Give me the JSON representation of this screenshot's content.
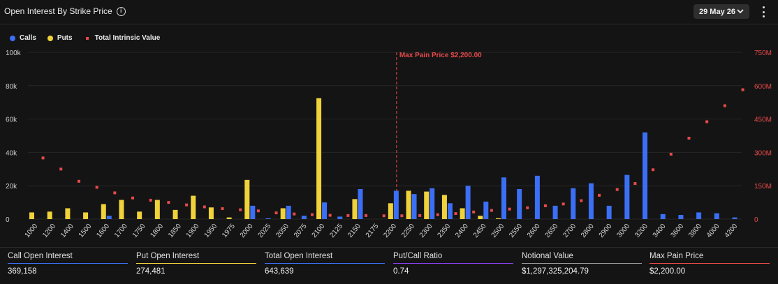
{
  "header": {
    "title": "Open Interest By Strike Price",
    "date": "29 May 26"
  },
  "legend": {
    "calls": "Calls",
    "puts": "Puts",
    "tiv": "Total Intrinsic Value"
  },
  "colors": {
    "calls": "#3b6ff5",
    "puts": "#f0d23a",
    "tiv": "#e84a4a",
    "max_pain": "#e84a4a",
    "axis_right": "#e84a4a"
  },
  "chart_data": {
    "type": "bar",
    "categories": [
      "1000",
      "1200",
      "1400",
      "1500",
      "1600",
      "1700",
      "1750",
      "1800",
      "1850",
      "1900",
      "1950",
      "1975",
      "2000",
      "2025",
      "2050",
      "2075",
      "2100",
      "2125",
      "2150",
      "2175",
      "2200",
      "2250",
      "2300",
      "2350",
      "2400",
      "2450",
      "2500",
      "2550",
      "2600",
      "2650",
      "2700",
      "2800",
      "2900",
      "3000",
      "3200",
      "3400",
      "3600",
      "3800",
      "4000",
      "4200"
    ],
    "series": [
      {
        "name": "Calls",
        "type": "bar",
        "axis": "left",
        "values": [
          0,
          0,
          0,
          0,
          2000,
          0,
          0,
          0,
          0,
          0,
          0,
          0,
          8000,
          500,
          8000,
          2000,
          10000,
          1500,
          18000,
          0,
          17000,
          15000,
          18500,
          9500,
          20000,
          10500,
          25000,
          18000,
          26000,
          8000,
          18500,
          21500,
          8000,
          26500,
          52000,
          3000,
          2500,
          4000,
          3500,
          1000
        ]
      },
      {
        "name": "Puts",
        "type": "bar",
        "axis": "left",
        "values": [
          4000,
          4500,
          6500,
          4000,
          9000,
          11500,
          4500,
          11500,
          5500,
          14000,
          7000,
          1000,
          23500,
          0,
          6500,
          0,
          72500,
          0,
          12000,
          0,
          9500,
          17000,
          16500,
          14500,
          6500,
          2000,
          500,
          0,
          0,
          0,
          0,
          0,
          0,
          0,
          0,
          0,
          0,
          0,
          0,
          0
        ]
      },
      {
        "name": "Total Intrinsic Value",
        "type": "scatter",
        "axis": "right",
        "values": [
          275,
          225,
          170,
          143,
          118,
          95,
          85,
          75,
          64,
          55,
          47,
          42,
          37,
          28,
          23,
          20,
          17,
          16,
          16,
          15,
          15,
          16,
          20,
          25,
          32,
          39,
          45,
          51,
          60,
          68,
          83,
          107,
          133,
          160,
          222,
          292,
          364,
          438,
          510,
          582
        ]
      }
    ],
    "ylim_left": [
      0,
      100000
    ],
    "yticks_left": [
      "0",
      "20k",
      "40k",
      "60k",
      "80k",
      "100k"
    ],
    "ylim_right": [
      0,
      750
    ],
    "yticks_right": [
      "0",
      "150M",
      "300M",
      "450M",
      "600M",
      "750M"
    ],
    "max_pain_strike": "2200",
    "max_pain_label": "Max Pain Price $2,200.00"
  },
  "stats": [
    {
      "label": "Call Open Interest",
      "value": "369,158",
      "color": "#3b6ff5"
    },
    {
      "label": "Put Open Interest",
      "value": "274,481",
      "color": "#f0d23a"
    },
    {
      "label": "Total Open Interest",
      "value": "643,639",
      "color": "#3b6ff5"
    },
    {
      "label": "Put/Call Ratio",
      "value": "0.74",
      "color": "#8a3ff0"
    },
    {
      "label": "Notional Value",
      "value": "$1,297,325,204.79",
      "color": "#9a9a9a"
    },
    {
      "label": "Max Pain Price",
      "value": "$2,200.00",
      "color": "#e84a4a"
    }
  ]
}
